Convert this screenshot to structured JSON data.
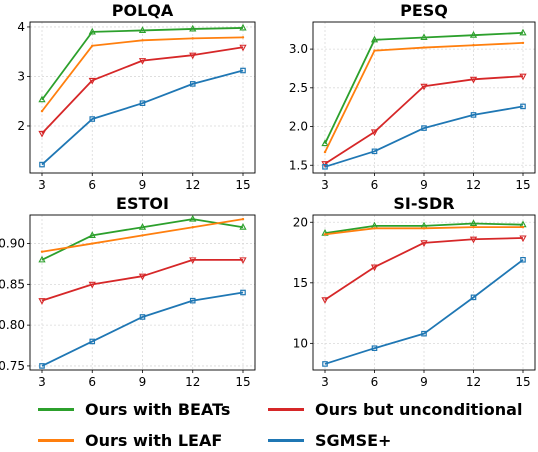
{
  "colors": {
    "beats": "#2ca02c",
    "leaf": "#ff7f0e",
    "uncond": "#d62728",
    "sgmse": "#1f77b4"
  },
  "legend": [
    {
      "name": "Ours with BEATs",
      "color": "#2ca02c"
    },
    {
      "name": "Ours but unconditional",
      "color": "#d62728"
    },
    {
      "name": "Ours with LEAF",
      "color": "#ff7f0e"
    },
    {
      "name": "SGMSE+",
      "color": "#1f77b4"
    }
  ],
  "chart_data": [
    {
      "type": "line",
      "title": "POLQA",
      "x": [
        3,
        6,
        9,
        12,
        15
      ],
      "xticks": [
        "3",
        "6",
        "9",
        "12",
        "15"
      ],
      "ylim": [
        1.05,
        4.1
      ],
      "yticks": [
        2,
        3,
        4
      ],
      "ytick_labels": [
        "2",
        "3",
        "4"
      ],
      "grid": true,
      "series": [
        {
          "name": "Ours with BEATs",
          "color": "#2ca02c",
          "marker": "triangle-up",
          "values": [
            2.53,
            3.9,
            3.93,
            3.96,
            3.98
          ]
        },
        {
          "name": "Ours with LEAF",
          "color": "#ff7f0e",
          "marker": "none",
          "values": [
            2.3,
            3.62,
            3.73,
            3.77,
            3.79
          ]
        },
        {
          "name": "Ours but unconditional",
          "color": "#d62728",
          "marker": "triangle-down",
          "values": [
            1.85,
            2.92,
            3.32,
            3.43,
            3.59
          ]
        },
        {
          "name": "SGMSE+",
          "color": "#1f77b4",
          "marker": "square",
          "values": [
            1.22,
            2.14,
            2.46,
            2.85,
            3.12
          ]
        }
      ]
    },
    {
      "type": "line",
      "title": "PESQ",
      "x": [
        3,
        6,
        9,
        12,
        15
      ],
      "xticks": [
        "3",
        "6",
        "9",
        "12",
        "15"
      ],
      "ylim": [
        1.4,
        3.35
      ],
      "yticks": [
        1.5,
        2.0,
        2.5,
        3.0
      ],
      "ytick_labels": [
        "1.5",
        "2.0",
        "2.5",
        "3.0"
      ],
      "grid": true,
      "series": [
        {
          "name": "Ours with BEATs",
          "color": "#2ca02c",
          "marker": "triangle-up",
          "values": [
            1.78,
            3.12,
            3.15,
            3.18,
            3.21
          ]
        },
        {
          "name": "Ours with LEAF",
          "color": "#ff7f0e",
          "marker": "none",
          "values": [
            1.67,
            2.98,
            3.02,
            3.05,
            3.08
          ]
        },
        {
          "name": "Ours but unconditional",
          "color": "#d62728",
          "marker": "triangle-down",
          "values": [
            1.52,
            1.93,
            2.52,
            2.61,
            2.65
          ]
        },
        {
          "name": "SGMSE+",
          "color": "#1f77b4",
          "marker": "square",
          "values": [
            1.48,
            1.68,
            1.98,
            2.15,
            2.26
          ]
        }
      ]
    },
    {
      "type": "line",
      "title": "ESTOI",
      "x": [
        3,
        6,
        9,
        12,
        15
      ],
      "xticks": [
        "3",
        "6",
        "9",
        "12",
        "15"
      ],
      "ylim": [
        0.745,
        0.935
      ],
      "yticks": [
        0.75,
        0.8,
        0.85,
        0.9
      ],
      "ytick_labels": [
        "0.75",
        "0.80",
        "0.85",
        "0.90"
      ],
      "grid": true,
      "series": [
        {
          "name": "Ours with BEATs",
          "color": "#2ca02c",
          "marker": "triangle-up",
          "values": [
            0.88,
            0.91,
            0.92,
            0.93,
            0.92
          ]
        },
        {
          "name": "Ours with LEAF",
          "color": "#ff7f0e",
          "marker": "none",
          "values": [
            0.89,
            0.9,
            0.91,
            0.92,
            0.93
          ]
        },
        {
          "name": "Ours but unconditional",
          "color": "#d62728",
          "marker": "triangle-down",
          "values": [
            0.83,
            0.85,
            0.86,
            0.88,
            0.88
          ]
        },
        {
          "name": "SGMSE+",
          "color": "#1f77b4",
          "marker": "square",
          "values": [
            0.75,
            0.78,
            0.81,
            0.83,
            0.84
          ]
        }
      ]
    },
    {
      "type": "line",
      "title": "SI-SDR",
      "x": [
        3,
        6,
        9,
        12,
        15
      ],
      "xticks": [
        "3",
        "6",
        "9",
        "12",
        "15"
      ],
      "ylim": [
        7.8,
        20.6
      ],
      "yticks": [
        10,
        15,
        20
      ],
      "ytick_labels": [
        "10",
        "15",
        "20"
      ],
      "grid": true,
      "series": [
        {
          "name": "Ours with BEATs",
          "color": "#2ca02c",
          "marker": "triangle-up",
          "values": [
            19.1,
            19.7,
            19.7,
            19.9,
            19.8
          ]
        },
        {
          "name": "Ours with LEAF",
          "color": "#ff7f0e",
          "marker": "none",
          "values": [
            19.0,
            19.5,
            19.5,
            19.6,
            19.6
          ]
        },
        {
          "name": "Ours but unconditional",
          "color": "#d62728",
          "marker": "triangle-down",
          "values": [
            13.6,
            16.3,
            18.3,
            18.6,
            18.7
          ]
        },
        {
          "name": "SGMSE+",
          "color": "#1f77b4",
          "marker": "square",
          "values": [
            8.3,
            9.6,
            10.8,
            13.8,
            16.9
          ]
        }
      ]
    }
  ]
}
